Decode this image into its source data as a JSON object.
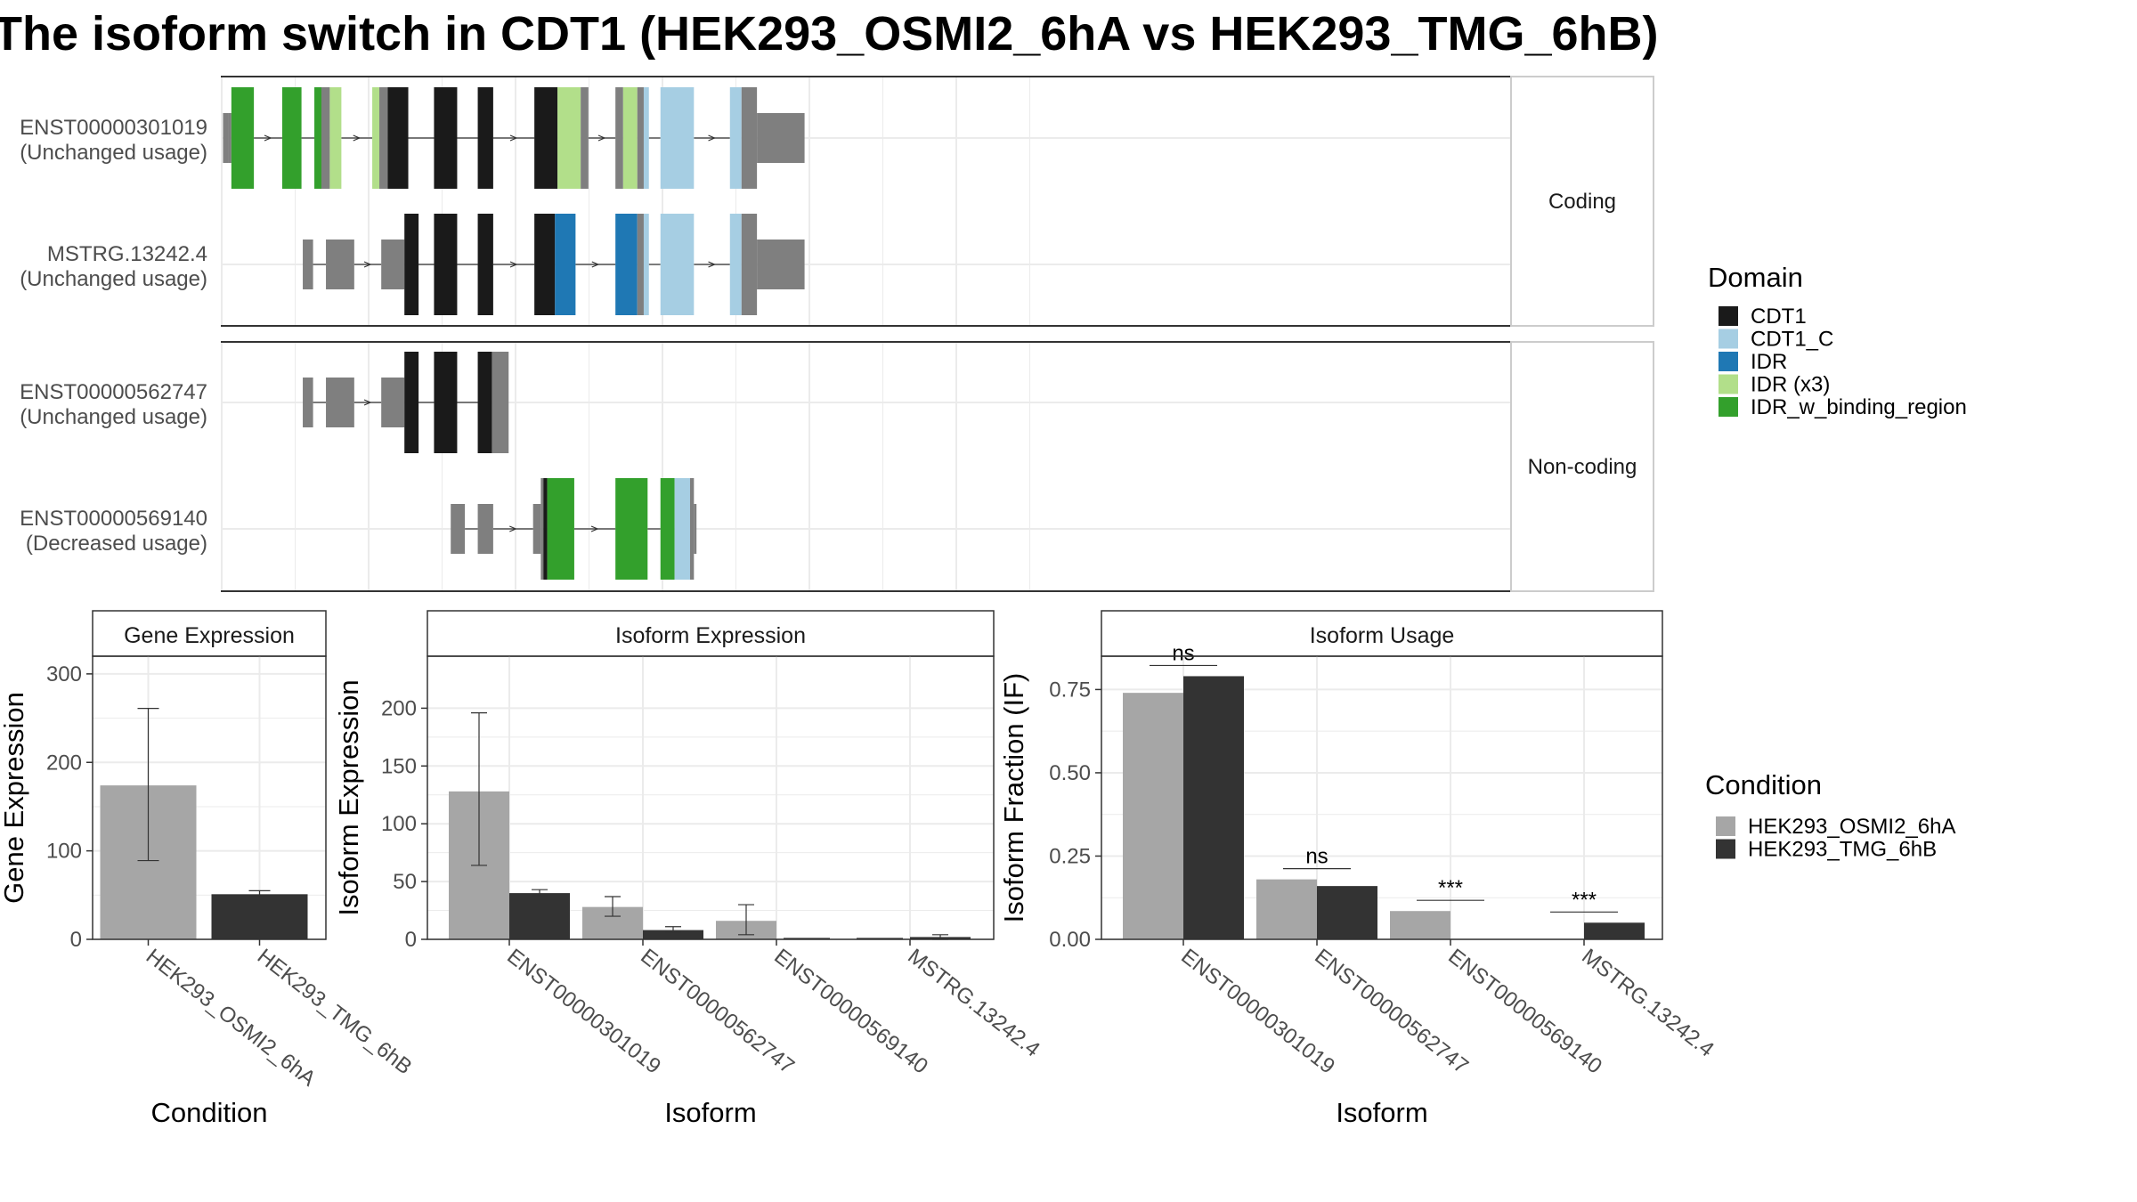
{
  "title": "The isoform switch in CDT1 (HEK293_OSMI2_6hA vs HEK293_TMG_6hB)",
  "colors": {
    "CDT1": "#1a1a1a",
    "CDT1_C": "#a6cee3",
    "IDR": "#1f78b4",
    "IDR (x3)": "#b2df8a",
    "IDR_w_binding_region": "#33a02c",
    "none": "#7f7f7f",
    "cond_A": "#a6a6a6",
    "cond_B": "#333333",
    "grid": "#ebebeb",
    "panel_border": "#333333",
    "strip_bg": "#ffffff"
  },
  "structure": {
    "groups": [
      {
        "label": "Coding",
        "tracks": [
          {
            "id": "ENST00000301019",
            "usage": "(Unchanged usage)",
            "exons": [
              {
                "s": 1.0,
                "e": 5.5,
                "h": "u"
              },
              {
                "s": 5.5,
                "e": 7.5,
                "h": "u"
              },
              {
                "s": 7.5,
                "e": 25.0,
                "h": "c",
                "d": "IDR_w_binding_region"
              },
              {
                "s": 47.0,
                "e": 62.0,
                "h": "c",
                "d": "IDR_w_binding_region"
              },
              {
                "s": 72.0,
                "e": 77.5,
                "h": "c",
                "d": "IDR_w_binding_region"
              },
              {
                "s": 77.5,
                "e": 84.0,
                "h": "c"
              },
              {
                "s": 84.0,
                "e": 93.0,
                "h": "c",
                "d": "IDR (x3)"
              },
              {
                "s": 117.0,
                "e": 122.5,
                "h": "c",
                "d": "IDR (x3)"
              },
              {
                "s": 122.5,
                "e": 129.0,
                "h": "c"
              },
              {
                "s": 129.0,
                "e": 145.0,
                "h": "c",
                "d": "CDT1"
              },
              {
                "s": 165.0,
                "e": 183.0,
                "h": "c",
                "d": "CDT1"
              },
              {
                "s": 199.0,
                "e": 211.0,
                "h": "c",
                "d": "CDT1"
              },
              {
                "s": 243.0,
                "e": 261.0,
                "h": "c",
                "d": "CDT1"
              },
              {
                "s": 261.0,
                "e": 279.0,
                "h": "c",
                "d": "IDR (x3)"
              },
              {
                "s": 279.0,
                "e": 285.0,
                "h": "c"
              },
              {
                "s": 306.0,
                "e": 312.0,
                "h": "c"
              },
              {
                "s": 312.0,
                "e": 323.0,
                "h": "c",
                "d": "IDR (x3)"
              },
              {
                "s": 323.0,
                "e": 328.0,
                "h": "c"
              },
              {
                "s": 328.0,
                "e": 332.0,
                "h": "c",
                "d": "CDT1_C"
              },
              {
                "s": 341.0,
                "e": 367.0,
                "h": "c",
                "d": "CDT1_C"
              },
              {
                "s": 395.0,
                "e": 404.0,
                "h": "c",
                "d": "CDT1_C"
              },
              {
                "s": 404.0,
                "e": 416.0,
                "h": "c"
              },
              {
                "s": 416.0,
                "e": 453.0,
                "h": "u"
              }
            ]
          },
          {
            "id": "MSTRG.13242.4",
            "usage": "(Unchanged usage)",
            "exons": [
              {
                "s": 63.0,
                "e": 71.0,
                "h": "u"
              },
              {
                "s": 81.0,
                "e": 103.0,
                "h": "u"
              },
              {
                "s": 124.0,
                "e": 142.0,
                "h": "u"
              },
              {
                "s": 142.0,
                "e": 153.0,
                "h": "c",
                "d": "CDT1"
              },
              {
                "s": 165.0,
                "e": 183.0,
                "h": "c",
                "d": "CDT1"
              },
              {
                "s": 199.0,
                "e": 211.0,
                "h": "c",
                "d": "CDT1"
              },
              {
                "s": 243.0,
                "e": 259.0,
                "h": "c",
                "d": "CDT1"
              },
              {
                "s": 259.0,
                "e": 275.0,
                "h": "c",
                "d": "IDR"
              },
              {
                "s": 306.0,
                "e": 323.0,
                "h": "c",
                "d": "IDR"
              },
              {
                "s": 323.0,
                "e": 328.0,
                "h": "c"
              },
              {
                "s": 328.0,
                "e": 332.0,
                "h": "c",
                "d": "CDT1_C"
              },
              {
                "s": 341.0,
                "e": 367.0,
                "h": "c",
                "d": "CDT1_C"
              },
              {
                "s": 395.0,
                "e": 404.0,
                "h": "c",
                "d": "CDT1_C"
              },
              {
                "s": 404.0,
                "e": 416.0,
                "h": "c"
              },
              {
                "s": 416.0,
                "e": 453.0,
                "h": "u"
              }
            ]
          }
        ]
      },
      {
        "label": "Non-coding",
        "tracks": [
          {
            "id": "ENST00000562747",
            "usage": "(Unchanged usage)",
            "exons": [
              {
                "s": 63.0,
                "e": 71.0,
                "h": "u"
              },
              {
                "s": 81.0,
                "e": 103.0,
                "h": "u"
              },
              {
                "s": 124.0,
                "e": 142.0,
                "h": "u"
              },
              {
                "s": 142.0,
                "e": 153.0,
                "h": "c",
                "d": "CDT1"
              },
              {
                "s": 165.0,
                "e": 183.0,
                "h": "c",
                "d": "CDT1"
              },
              {
                "s": 199.0,
                "e": 210.0,
                "h": "c",
                "d": "CDT1"
              },
              {
                "s": 210.0,
                "e": 223.0,
                "h": "c"
              }
            ]
          },
          {
            "id": "ENST00000569140",
            "usage": "(Decreased usage)",
            "exons": [
              {
                "s": 178.0,
                "e": 189.0,
                "h": "u"
              },
              {
                "s": 199.0,
                "e": 211.0,
                "h": "u"
              },
              {
                "s": 242.0,
                "e": 248.0,
                "h": "u"
              },
              {
                "s": 248.0,
                "e": 250.0,
                "h": "c"
              },
              {
                "s": 250.0,
                "e": 253.0,
                "h": "c",
                "d": "CDT1"
              },
              {
                "s": 253.0,
                "e": 274.0,
                "h": "c",
                "d": "IDR_w_binding_region"
              },
              {
                "s": 306.0,
                "e": 331.0,
                "h": "c",
                "d": "IDR_w_binding_region"
              },
              {
                "s": 341.0,
                "e": 352.0,
                "h": "c",
                "d": "IDR_w_binding_region"
              },
              {
                "s": 352.0,
                "e": 364.0,
                "h": "c",
                "d": "CDT1_C"
              },
              {
                "s": 364.0,
                "e": 367.0,
                "h": "c"
              },
              {
                "s": 367.0,
                "e": 369.0,
                "h": "u"
              }
            ]
          }
        ]
      }
    ]
  },
  "legend_domain": {
    "title": "Domain",
    "items": [
      "CDT1",
      "CDT1_C",
      "IDR",
      "IDR (x3)",
      "IDR_w_binding_region"
    ]
  },
  "legend_condition": {
    "title": "Condition",
    "items": [
      "HEK293_OSMI2_6hA",
      "HEK293_TMG_6hB"
    ]
  },
  "chart_data": [
    {
      "type": "bar",
      "title": "Gene Expression",
      "xlabel": "Condition",
      "ylabel": "Gene Expression",
      "ylim": [
        0,
        320
      ],
      "yticks": [
        0,
        100,
        200,
        300
      ],
      "categories": [
        "HEK293_OSMI2_6hA",
        "HEK293_TMG_6hB"
      ],
      "values": [
        174,
        51
      ],
      "errors": [
        [
          89,
          261
        ],
        [
          48,
          55
        ]
      ],
      "colors": [
        "#a6a6a6",
        "#333333"
      ]
    },
    {
      "type": "bar",
      "title": "Isoform Expression",
      "xlabel": "Isoform",
      "ylabel": "Isoform Expression",
      "ylim": [
        0,
        245
      ],
      "yticks": [
        0,
        50,
        100,
        150,
        200
      ],
      "categories": [
        "ENST00000301019",
        "ENST00000562747",
        "ENST00000569140",
        "MSTRG.13242.4"
      ],
      "series": [
        {
          "name": "HEK293_OSMI2_6hA",
          "values": [
            128,
            28,
            16,
            0
          ],
          "errors": [
            [
              64,
              196
            ],
            [
              20,
              37
            ],
            [
              4,
              30
            ],
            [
              0,
              0
            ]
          ]
        },
        {
          "name": "HEK293_TMG_6hB",
          "values": [
            40,
            8,
            0,
            2
          ],
          "errors": [
            [
              38,
              43
            ],
            [
              6,
              11
            ],
            [
              0,
              0
            ],
            [
              0,
              4
            ]
          ]
        }
      ]
    },
    {
      "type": "bar",
      "title": "Isoform Usage",
      "xlabel": "Isoform",
      "ylabel": "Isoform Fraction (IF)",
      "ylim": [
        0,
        0.85
      ],
      "yticks": [
        0.0,
        0.25,
        0.5,
        0.75
      ],
      "yticklabels": [
        "0.00",
        "0.25",
        "0.50",
        "0.75"
      ],
      "categories": [
        "ENST00000301019",
        "ENST00000562747",
        "ENST00000569140",
        "MSTRG.13242.4"
      ],
      "series": [
        {
          "name": "HEK293_OSMI2_6hA",
          "values": [
            0.74,
            0.18,
            0.085,
            0.0
          ]
        },
        {
          "name": "HEK293_TMG_6hB",
          "values": [
            0.79,
            0.16,
            0.0,
            0.05
          ]
        }
      ],
      "annotations": [
        "ns",
        "ns",
        "***",
        "***"
      ]
    }
  ]
}
